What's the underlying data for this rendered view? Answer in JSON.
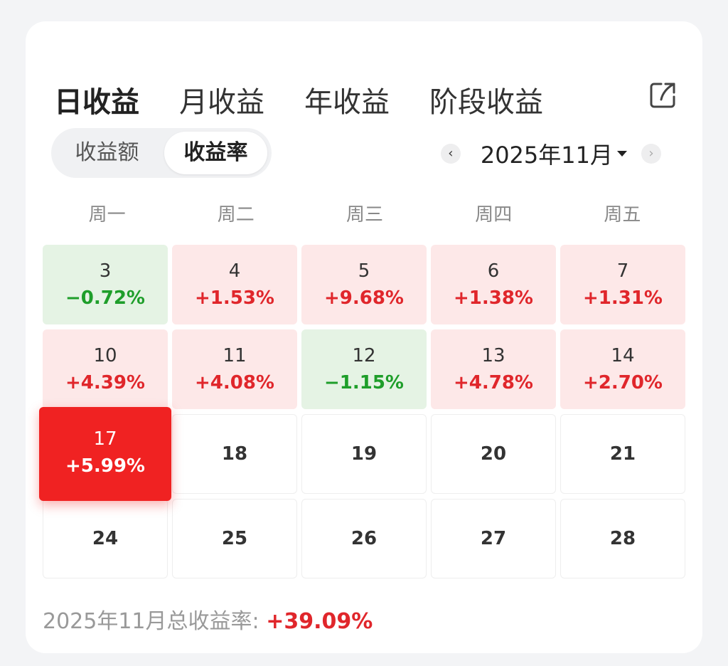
{
  "tabs": [
    {
      "label": "日收益",
      "active": true
    },
    {
      "label": "月收益",
      "active": false
    },
    {
      "label": "年收益",
      "active": false
    },
    {
      "label": "阶段收益",
      "active": false
    }
  ],
  "share_icon": "share-export-icon",
  "segment": {
    "options": [
      "收益额",
      "收益率"
    ],
    "selected": "收益率"
  },
  "month_nav": {
    "prev": "‹",
    "label": "2025年11月",
    "next": "›"
  },
  "weekdays": [
    "周一",
    "周二",
    "周三",
    "周四",
    "周五"
  ],
  "days": [
    {
      "day": "3",
      "rate": "−0.72%",
      "trend": "down"
    },
    {
      "day": "4",
      "rate": "+1.53%",
      "trend": "up"
    },
    {
      "day": "5",
      "rate": "+9.68%",
      "trend": "up"
    },
    {
      "day": "6",
      "rate": "+1.38%",
      "trend": "up"
    },
    {
      "day": "7",
      "rate": "+1.31%",
      "trend": "up"
    },
    {
      "day": "10",
      "rate": "+4.39%",
      "trend": "up"
    },
    {
      "day": "11",
      "rate": "+4.08%",
      "trend": "up"
    },
    {
      "day": "12",
      "rate": "−1.15%",
      "trend": "down"
    },
    {
      "day": "13",
      "rate": "+4.78%",
      "trend": "up"
    },
    {
      "day": "14",
      "rate": "+2.70%",
      "trend": "up"
    },
    {
      "day": "17",
      "rate": "+5.99%",
      "trend": "up",
      "selected": true
    },
    {
      "day": "18",
      "rate": "",
      "trend": "none"
    },
    {
      "day": "19",
      "rate": "",
      "trend": "none"
    },
    {
      "day": "20",
      "rate": "",
      "trend": "none"
    },
    {
      "day": "21",
      "rate": "",
      "trend": "none"
    },
    {
      "day": "24",
      "rate": "",
      "trend": "none"
    },
    {
      "day": "25",
      "rate": "",
      "trend": "none"
    },
    {
      "day": "26",
      "rate": "",
      "trend": "none"
    },
    {
      "day": "27",
      "rate": "",
      "trend": "none"
    },
    {
      "day": "28",
      "rate": "",
      "trend": "none"
    }
  ],
  "footer": {
    "label": "2025年11月总收益率:",
    "total": "+39.09%"
  },
  "colors": {
    "accent": "#ff4a12",
    "up_text": "#e0262b",
    "up_bg": "#fde8e8",
    "down_text": "#1e9e2a",
    "down_bg": "#e5f3e4",
    "selected_bg": "#f02222"
  }
}
